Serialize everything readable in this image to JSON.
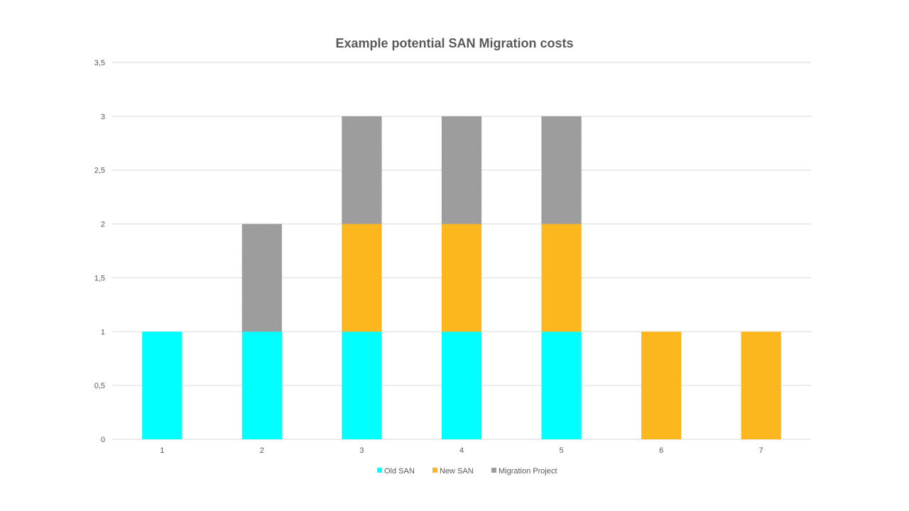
{
  "chart_data": {
    "type": "bar",
    "stacked": true,
    "title": "Example potential SAN Migration costs",
    "xlabel": "",
    "ylabel": "",
    "categories": [
      "1",
      "2",
      "3",
      "4",
      "5",
      "6",
      "7"
    ],
    "series": [
      {
        "name": "Old SAN",
        "color": "#00FFFF",
        "values": [
          1,
          1,
          1,
          1,
          1,
          0,
          0
        ]
      },
      {
        "name": "New SAN",
        "color": "#FDB71E",
        "values": [
          0,
          0,
          1,
          1,
          1,
          1,
          1
        ]
      },
      {
        "name": "Migration Project",
        "color": "#A6A6A6",
        "pattern": "hatched",
        "values": [
          0,
          1,
          1,
          1,
          1,
          0,
          0
        ]
      }
    ],
    "ylim": [
      0,
      3.5
    ],
    "yticks": [
      0,
      0.5,
      1,
      1.5,
      2,
      2.5,
      3,
      3.5
    ],
    "ytick_labels": [
      "0",
      "0,5",
      "1",
      "1,5",
      "2",
      "2,5",
      "3",
      "3,5"
    ],
    "grid": true,
    "legend_position": "bottom"
  }
}
